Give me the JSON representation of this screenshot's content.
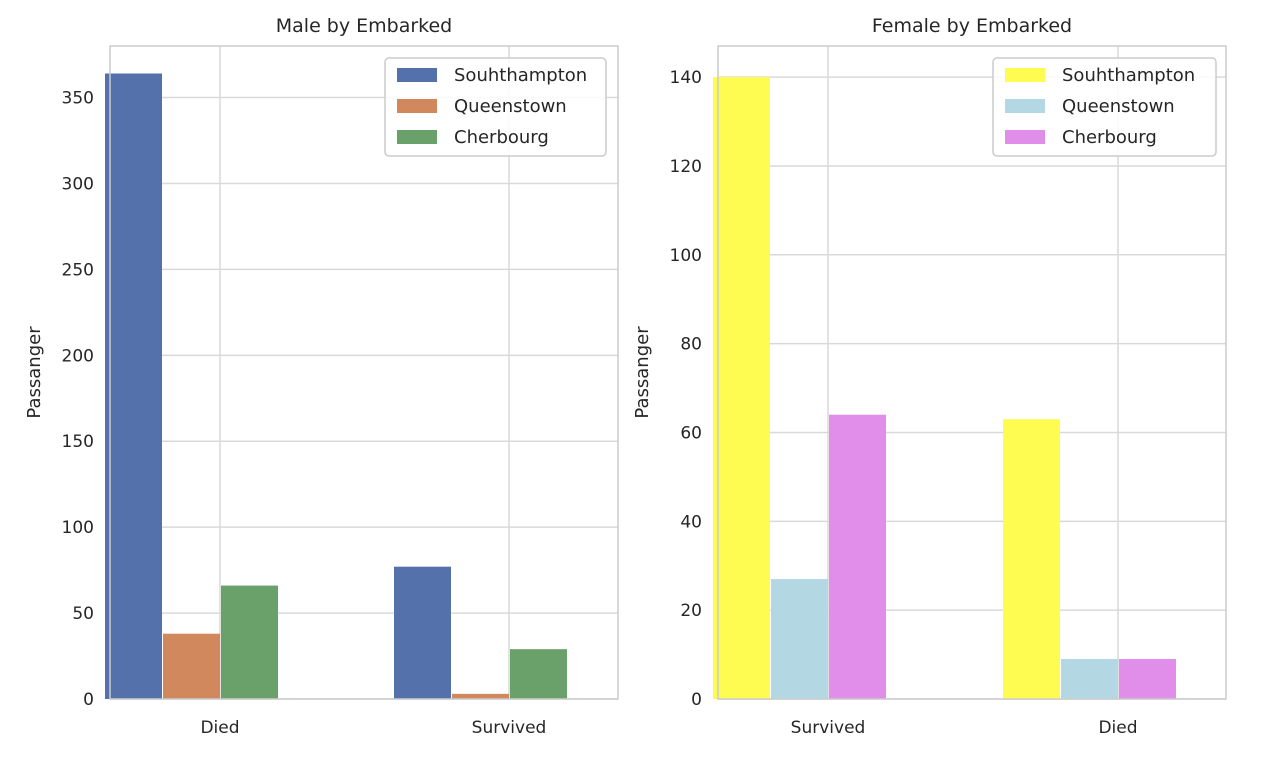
{
  "chart_data": [
    {
      "type": "bar",
      "title": "Male by Embarked",
      "xlabel": "",
      "ylabel": "Passanger",
      "categories": [
        "Died",
        "Survived"
      ],
      "ylim": [
        0,
        380
      ],
      "yticks": [
        0,
        50,
        100,
        150,
        200,
        250,
        300,
        350
      ],
      "grid": true,
      "legend_position": "top-right",
      "series": [
        {
          "name": "Souhthampton",
          "values": [
            364,
            77
          ],
          "color": "#5471ab"
        },
        {
          "name": "Queenstown",
          "values": [
            38,
            3
          ],
          "color": "#d1885c"
        },
        {
          "name": "Cherbourg",
          "values": [
            66,
            29
          ],
          "color": "#6aa16a"
        }
      ]
    },
    {
      "type": "bar",
      "title": "Female by Embarked",
      "xlabel": "",
      "ylabel": "Passanger",
      "categories": [
        "Survived",
        "Died"
      ],
      "ylim": [
        0,
        147
      ],
      "yticks": [
        0,
        20,
        40,
        60,
        80,
        100,
        120,
        140
      ],
      "grid": true,
      "legend_position": "top-right",
      "series": [
        {
          "name": "Souhthampton",
          "values": [
            140,
            63
          ],
          "color": "#fefc51"
        },
        {
          "name": "Queenstown",
          "values": [
            27,
            9
          ],
          "color": "#b3d7e3"
        },
        {
          "name": "Cherbourg",
          "values": [
            64,
            9
          ],
          "color": "#e08eea"
        }
      ]
    }
  ]
}
